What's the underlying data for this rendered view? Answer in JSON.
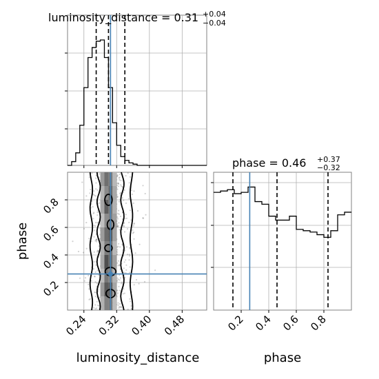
{
  "chart_data": {
    "type": "corner",
    "parameters": [
      "luminosity_distance",
      "phase"
    ],
    "truths": {
      "luminosity_distance": 0.305,
      "phase": 0.262
    },
    "truth_color": "#4682b4",
    "panels": {
      "luminosity_distance_hist": {
        "title": "luminosity_distance = 0.31",
        "title_sup": "+0.04",
        "title_sub": "−0.04",
        "xlim": [
          0.2,
          0.54
        ],
        "bin_width": 0.01,
        "bin_start": 0.2,
        "counts": [
          0,
          0.03,
          0.1,
          0.32,
          0.62,
          0.86,
          0.94,
          0.99,
          1.0,
          0.86,
          0.62,
          0.34,
          0.16,
          0.07,
          0.04,
          0.02,
          0.01,
          0,
          0,
          0,
          0,
          0,
          0,
          0,
          0,
          0,
          0,
          0,
          0,
          0,
          0,
          0,
          0,
          0
        ],
        "quantiles": [
          0.27,
          0.3,
          0.34
        ]
      },
      "phase_hist": {
        "title": "phase = 0.46",
        "title_sup": "+0.37",
        "title_sub": "−0.32",
        "xlim": [
          0.0,
          1.0
        ],
        "bin_width": 0.05,
        "bin_start": 0.0,
        "counts": [
          0.89,
          0.9,
          0.91,
          0.88,
          0.89,
          0.93,
          0.82,
          0.8,
          0.71,
          0.68,
          0.68,
          0.71,
          0.61,
          0.6,
          0.59,
          0.57,
          0.55,
          0.6,
          0.72,
          0.74
        ],
        "quantiles": [
          0.14,
          0.46,
          0.83
        ]
      },
      "joint": {
        "xlim": [
          0.2,
          0.54
        ],
        "ylim": [
          0.0,
          1.0
        ],
        "xlabel": "luminosity_distance",
        "ylabel": "phase",
        "x_ticks": [
          "0.24",
          "0.32",
          "0.40",
          "0.48"
        ],
        "y_ticks": [
          "0.2",
          "0.4",
          "0.6",
          "0.8"
        ]
      }
    },
    "phase_x_ticks": [
      "0.2",
      "0.4",
      "0.6",
      "0.8"
    ],
    "phase_xlabel": "phase"
  }
}
